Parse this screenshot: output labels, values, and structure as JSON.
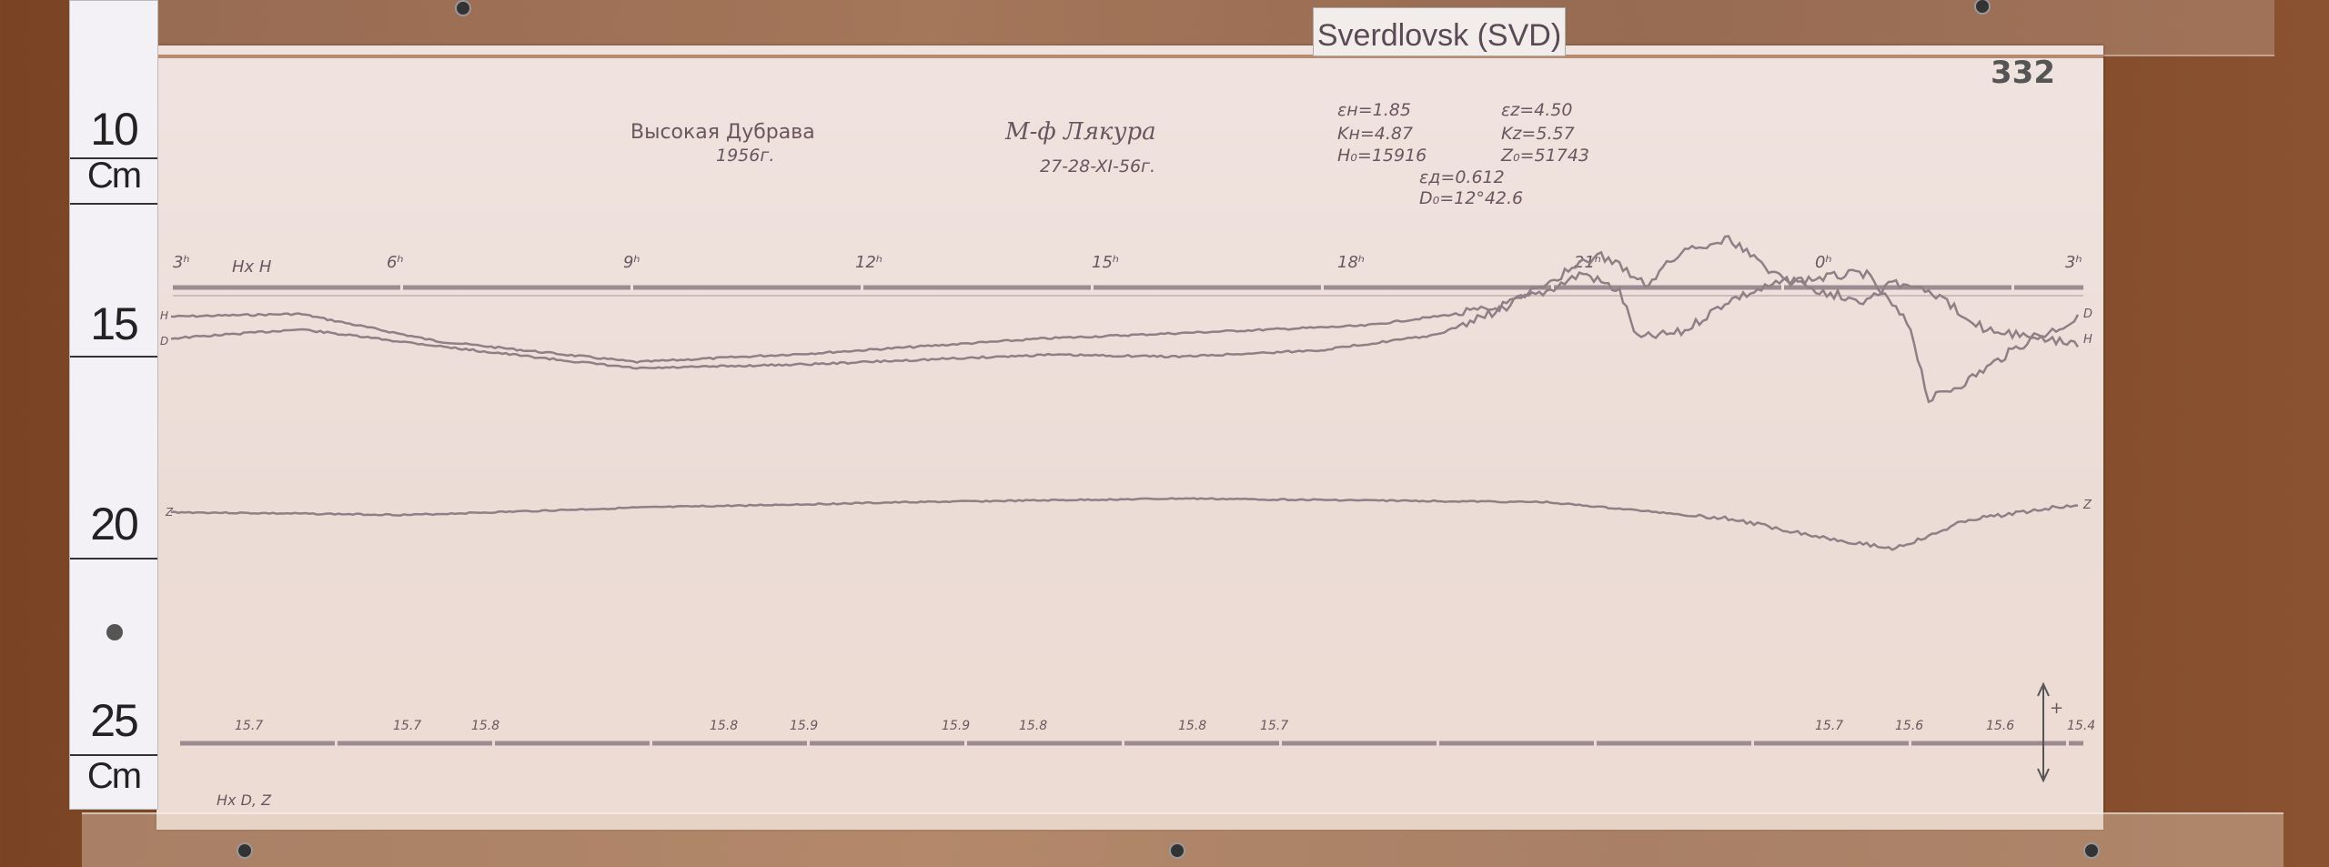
{
  "label_card": "Sverdlovsk (SVD)",
  "sheet_number": "332",
  "ruler": {
    "marks": [
      "10",
      "15",
      "20",
      "25"
    ],
    "unit": "Cm"
  },
  "header": {
    "station": "Высокая Дубрава",
    "year": "1956г.",
    "instrument": "М-ф Лякура",
    "dates": "27-28-XI-56г."
  },
  "constants": {
    "eps_h": "εн=1.85",
    "eps_z": "εz=4.50",
    "k_h": "Kн=4.87",
    "k_z": "Kz=5.57",
    "h0": "H₀=15916",
    "z0": "Z₀=51743",
    "eps_d": "εд=0.612",
    "d0": "D₀=12°42.6"
  },
  "hour_marks": [
    "3ʰ",
    "6ʰ",
    "9ʰ",
    "12ʰ",
    "15ʰ",
    "18ʰ",
    "21ʰ",
    "0ʰ",
    "3ʰ"
  ],
  "top_baseline_label": "Hx H",
  "trace_labels": {
    "h_left": "H",
    "d_left": "D",
    "z_left": "Z",
    "d_right": "D",
    "h_right": "H",
    "z_right": "Z"
  },
  "bottom_baseline_label": "Hx D, Z",
  "bottom_baseline_values": [
    "15.7",
    "15.7",
    "15.8",
    "15.8",
    "15.9",
    "15.9",
    "15.8",
    "15.8",
    "15.7",
    "15.7",
    "15.6",
    "15.6",
    "15.4"
  ],
  "polarity": {
    "plus": "+",
    "minus": "−"
  },
  "colors": {
    "trace": "#8f7f86",
    "ink": "#6a5660",
    "paper": "#eddcd6",
    "wood": "#8a5030"
  }
}
